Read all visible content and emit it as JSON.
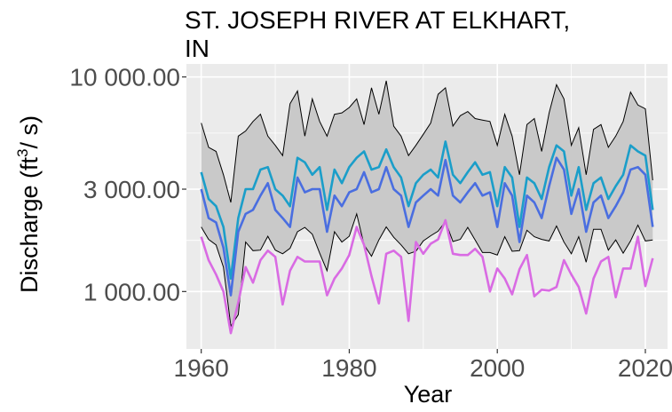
{
  "chart_data": {
    "type": "line",
    "title_lines": [
      "ST. JOSEPH RIVER AT ELKHART,",
      "IN"
    ],
    "xlabel": "Year",
    "ylabel_parts": {
      "pre": "Discharge (ft",
      "sup": "3",
      "post": "/ s)"
    },
    "y_scale": "log",
    "xlim": [
      1958,
      2023
    ],
    "ylim": [
      540,
      11500
    ],
    "x_ticks": [
      1960,
      1980,
      2000,
      2020
    ],
    "x_tick_labels": [
      "1960",
      "1980",
      "2000",
      "2020"
    ],
    "y_ticks": [
      1000,
      3000,
      10000
    ],
    "y_tick_labels": [
      "1 000.00",
      "3 000.00",
      "10 000.00"
    ],
    "y_minor_ticks": [
      1732,
      5477
    ],
    "grid": true,
    "colors": {
      "panel_background": "#ebebeb",
      "grid": "#ffffff",
      "ribbon_fill": "#c9c9c9",
      "ribbon_stroke": "#000000",
      "upper_series": "#1b9ec9",
      "middle_series": "#4a6ee0",
      "lower_series": "#d96be3"
    },
    "x": [
      1960,
      1961,
      1962,
      1963,
      1964,
      1965,
      1966,
      1967,
      1968,
      1969,
      1970,
      1971,
      1972,
      1973,
      1974,
      1975,
      1976,
      1977,
      1978,
      1979,
      1980,
      1981,
      1982,
      1983,
      1984,
      1985,
      1986,
      1987,
      1988,
      1989,
      1990,
      1991,
      1992,
      1993,
      1994,
      1995,
      1996,
      1997,
      1998,
      1999,
      2000,
      2001,
      2002,
      2003,
      2004,
      2005,
      2006,
      2007,
      2008,
      2009,
      2010,
      2011,
      2012,
      2013,
      2014,
      2015,
      2016,
      2017,
      2018,
      2019,
      2020,
      2021
    ],
    "ribbon": {
      "upper": [
        6100,
        4700,
        4500,
        3500,
        2600,
        5300,
        5600,
        6200,
        6700,
        5300,
        4800,
        4300,
        7500,
        8600,
        5300,
        7900,
        6200,
        5300,
        6700,
        6800,
        7200,
        7900,
        6000,
        8900,
        6700,
        9600,
        5900,
        5300,
        4300,
        4800,
        5400,
        6100,
        8300,
        8900,
        5900,
        6600,
        6900,
        6400,
        6300,
        6200,
        4800,
        6700,
        5300,
        3500,
        6000,
        6400,
        4500,
        6800,
        9200,
        7900,
        4800,
        5800,
        3500,
        5700,
        6000,
        4700,
        5300,
        6200,
        8500,
        7400,
        7100,
        3300
      ],
      "lower": [
        2000,
        1750,
        1650,
        1300,
        690,
        780,
        1700,
        1550,
        1560,
        1810,
        1560,
        1500,
        1590,
        1900,
        1990,
        1850,
        1510,
        1250,
        1900,
        1700,
        1810,
        2300,
        1650,
        1460,
        1740,
        2000,
        1790,
        1650,
        1500,
        1540,
        1720,
        1820,
        1910,
        2120,
        1710,
        1750,
        1990,
        1740,
        1520,
        1520,
        1480,
        1800,
        1540,
        1550,
        1930,
        1800,
        1750,
        1720,
        2020,
        1700,
        1500,
        1800,
        1370,
        1950,
        1950,
        1560,
        1740,
        1510,
        1720,
        2040,
        1720,
        1740
      ]
    },
    "series": [
      {
        "values": [
          3600,
          2700,
          2500,
          2000,
          1150,
          2200,
          3000,
          3000,
          3700,
          3800,
          3000,
          2800,
          2500,
          4200,
          4000,
          3500,
          3800,
          2400,
          3700,
          3200,
          3800,
          4200,
          4500,
          3700,
          3800,
          4600,
          3800,
          3400,
          2500,
          3200,
          3500,
          3700,
          3400,
          5000,
          3500,
          3200,
          3600,
          4000,
          3500,
          3600,
          2500,
          3800,
          3400,
          2000,
          3400,
          3200,
          2700,
          3800,
          4800,
          4500,
          2800,
          3800,
          2400,
          3200,
          3400,
          2700,
          3100,
          3500,
          4800,
          4500,
          4300,
          2400
        ]
      },
      {
        "values": [
          3000,
          2200,
          2100,
          1600,
          960,
          1900,
          2300,
          2400,
          2800,
          3200,
          2400,
          2200,
          2000,
          3400,
          2900,
          3000,
          3000,
          1900,
          2800,
          2500,
          2900,
          3000,
          3600,
          2900,
          3000,
          3800,
          3000,
          2800,
          2000,
          2600,
          2800,
          3000,
          2800,
          4100,
          2800,
          2600,
          2900,
          3200,
          2800,
          2900,
          2000,
          3200,
          2800,
          1700,
          2800,
          2600,
          2200,
          3100,
          4200,
          3700,
          2300,
          3000,
          1900,
          2600,
          2800,
          2200,
          2500,
          2900,
          3700,
          3800,
          3500,
          2000
        ]
      },
      {
        "values": [
          1800,
          1400,
          1200,
          1000,
          640,
          890,
          1300,
          1100,
          1400,
          1550,
          1450,
          870,
          1250,
          1450,
          1380,
          1380,
          1380,
          960,
          1150,
          1280,
          1480,
          2000,
          1650,
          1180,
          880,
          1500,
          1550,
          1450,
          730,
          1700,
          1500,
          1670,
          1750,
          2150,
          1500,
          1480,
          1480,
          1580,
          1450,
          1000,
          1280,
          1150,
          970,
          1270,
          1480,
          950,
          1020,
          1010,
          1050,
          1400,
          1200,
          1050,
          790,
          1150,
          1380,
          1450,
          940,
          1280,
          1280,
          1800,
          1060,
          1430
        ]
      }
    ]
  }
}
